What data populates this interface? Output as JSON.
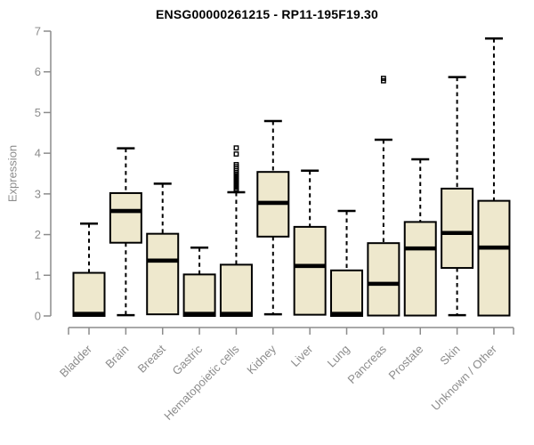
{
  "chart_data": {
    "type": "boxplot",
    "title": "ENSG00000261215 - RP11-195F19.30",
    "ylabel": "Expression",
    "ylim": [
      0,
      7
    ],
    "yticks": [
      0,
      1,
      2,
      3,
      4,
      5,
      6,
      7
    ],
    "grid": false,
    "legend": null,
    "categories": [
      "Bladder",
      "Brain",
      "Breast",
      "Gastric",
      "Hematopoietic cells",
      "Kidney",
      "Liver",
      "Lung",
      "Pancreas",
      "Prostate",
      "Skin",
      "Unknown / Other"
    ],
    "boxes": [
      {
        "category": "Bladder",
        "whisker_low": 0.0,
        "q1": 0.0,
        "median": 0.05,
        "q3": 1.06,
        "whisker_high": 2.27,
        "outliers": []
      },
      {
        "category": "Brain",
        "whisker_low": 0.02,
        "q1": 1.8,
        "median": 2.58,
        "q3": 3.02,
        "whisker_high": 4.12,
        "outliers": []
      },
      {
        "category": "Breast",
        "whisker_low": 0.04,
        "q1": 0.04,
        "median": 1.36,
        "q3": 2.02,
        "whisker_high": 3.25,
        "outliers": []
      },
      {
        "category": "Gastric",
        "whisker_low": 0.0,
        "q1": 0.0,
        "median": 0.05,
        "q3": 1.02,
        "whisker_high": 1.68,
        "outliers": []
      },
      {
        "category": "Hematopoietic cells",
        "whisker_low": 0.0,
        "q1": 0.0,
        "median": 0.05,
        "q3": 1.26,
        "whisker_high": 3.04,
        "outliers": [
          3.08,
          3.12,
          3.16,
          3.2,
          3.24,
          3.28,
          3.32,
          3.36,
          3.4,
          3.44,
          3.48,
          3.52,
          3.57,
          3.62,
          3.67,
          3.72,
          3.98,
          4.13
        ]
      },
      {
        "category": "Kidney",
        "whisker_low": 0.04,
        "q1": 1.95,
        "median": 2.78,
        "q3": 3.54,
        "whisker_high": 4.79,
        "outliers": []
      },
      {
        "category": "Liver",
        "whisker_low": 0.03,
        "q1": 0.03,
        "median": 1.23,
        "q3": 2.19,
        "whisker_high": 3.57,
        "outliers": []
      },
      {
        "category": "Lung",
        "whisker_low": 0.0,
        "q1": 0.0,
        "median": 0.05,
        "q3": 1.12,
        "whisker_high": 2.58,
        "outliers": []
      },
      {
        "category": "Pancreas",
        "whisker_low": 0.01,
        "q1": 0.01,
        "median": 0.79,
        "q3": 1.79,
        "whisker_high": 4.33,
        "outliers": [
          5.78,
          5.84
        ]
      },
      {
        "category": "Prostate",
        "whisker_low": 0.01,
        "q1": 0.01,
        "median": 1.66,
        "q3": 2.31,
        "whisker_high": 3.85,
        "outliers": []
      },
      {
        "category": "Skin",
        "whisker_low": 0.02,
        "q1": 1.18,
        "median": 2.04,
        "q3": 3.13,
        "whisker_high": 5.87,
        "outliers": []
      },
      {
        "category": "Unknown / Other",
        "whisker_low": 0.01,
        "q1": 0.01,
        "median": 1.68,
        "q3": 2.83,
        "whisker_high": 6.82,
        "outliers": []
      }
    ],
    "style": {
      "box_fill": "#EEE8CD",
      "box_stroke": "#000000",
      "median_color": "#000000",
      "whisker_color": "#000000",
      "axis_color": "#8c8c8c",
      "tick_label_color": "#8c8c8c",
      "title_color": "#000000",
      "background": "#ffffff"
    }
  }
}
